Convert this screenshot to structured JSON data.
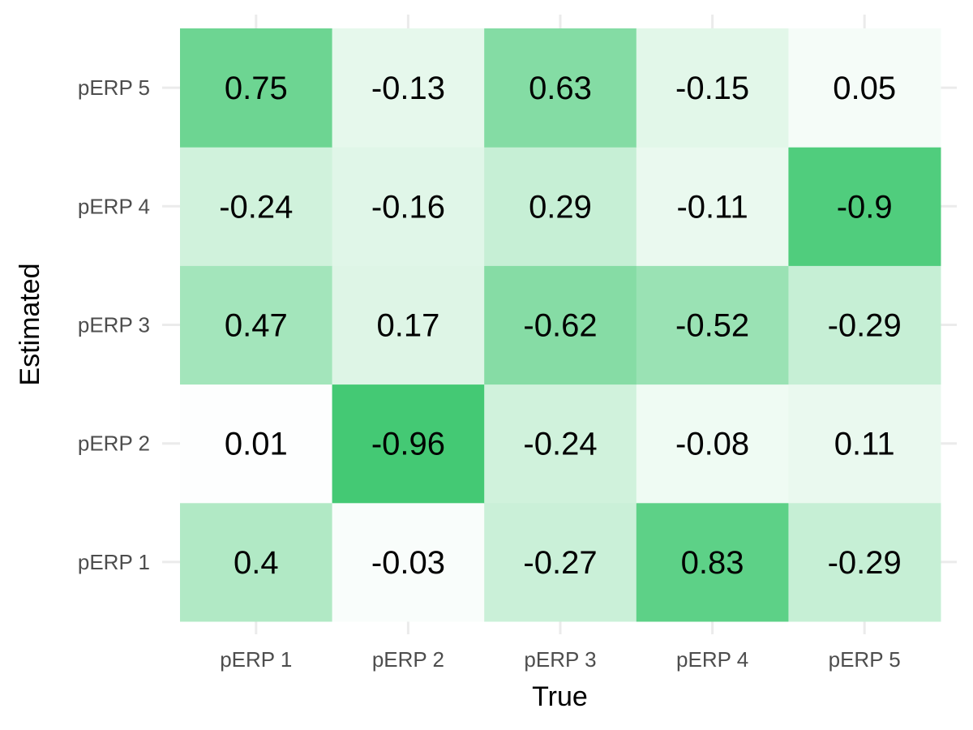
{
  "chart_data": {
    "type": "heatmap",
    "xlabel": "True",
    "ylabel": "Estimated",
    "x_categories": [
      "pERP 1",
      "pERP 2",
      "pERP 3",
      "pERP 4",
      "pERP 5"
    ],
    "y_categories": [
      "pERP 1",
      "pERP 2",
      "pERP 3",
      "pERP 4",
      "pERP 5"
    ],
    "values": [
      [
        0.4,
        -0.03,
        -0.27,
        0.83,
        -0.29
      ],
      [
        0.01,
        -0.96,
        -0.24,
        -0.08,
        0.11
      ],
      [
        0.47,
        0.17,
        -0.62,
        -0.52,
        -0.29
      ],
      [
        -0.24,
        -0.16,
        0.29,
        -0.11,
        -0.9
      ],
      [
        0.75,
        -0.13,
        0.63,
        -0.15,
        0.05
      ]
    ],
    "color_scale": {
      "low": "#ffffff",
      "high": "#3cc76e",
      "mapping": "absolute value"
    },
    "grid": true
  }
}
